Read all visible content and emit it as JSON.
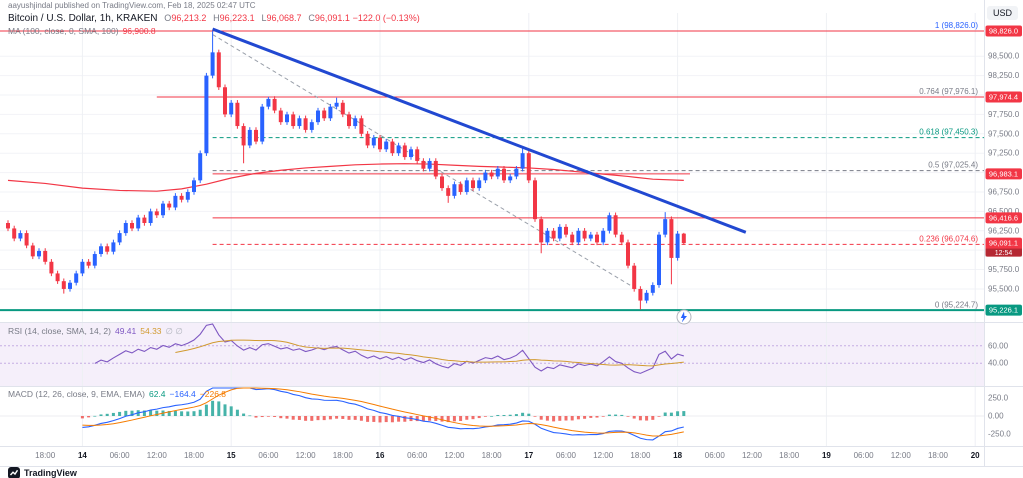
{
  "attribution": "aayushjindal published on TradingView.com, Feb 18, 2025 02:47 UTC",
  "header": {
    "symbol": "Bitcoin / U.S. Dollar, 1h, KRAKEN",
    "ohlc": {
      "o_label": "O",
      "o": "96,213.2",
      "h_label": "H",
      "h": "96,223.1",
      "l_label": "L",
      "l": "96,068.7",
      "c_label": "C",
      "c": "96,091.1",
      "change": "−122.0 (−0.13%)"
    },
    "ma_label": "MA (100, close, 0, SMA, 100)",
    "ma_value": "96,900.8",
    "currency": "USD"
  },
  "rsi_legend": {
    "label": "RSI (14, close, SMA, 14, 2)",
    "value": "49.41",
    "ma_value": "54.33",
    "extra": "∅ ∅"
  },
  "macd_legend": {
    "label": "MACD (12, 26, close, 9, EMA, EMA)",
    "hist": "62.4",
    "macd": "−164.4",
    "signal": "−226.8"
  },
  "footer": {
    "brand": "TradingView"
  },
  "colors": {
    "up": "#2962ff",
    "down": "#f23645",
    "ma": "#f23645",
    "trend_blue": "#2148d1",
    "trend_gray": "#9aa0aa",
    "rsi": "#7e57c2",
    "rsi_ma": "#d19a2f",
    "rsi_band": "#c5aee3",
    "rsi_bg": "#f5effa",
    "macd_line": "#2962ff",
    "signal_line": "#f57c00",
    "hist_up": "#26a69a",
    "hist_down": "#ef5350",
    "badge_red": "#f23645",
    "badge_green": "#089981",
    "axis_text": "#787b86",
    "grid": "#f2f3f7",
    "separator": "#e0e3eb"
  },
  "chart_data": {
    "type": "candlestick",
    "title": "Bitcoin / U.S. Dollar",
    "exchange": "KRAKEN",
    "interval": "1h",
    "start": "2025-02-13 12:00 UTC",
    "end": "2025-02-18 02:00 UTC",
    "price_range": [
      95073,
      99057
    ],
    "last": {
      "open": 96213.2,
      "high": 96223.1,
      "low": 96068.7,
      "close": 96091.1,
      "change": -122.0,
      "change_pct": -0.13
    },
    "candles": {
      "first_open": 96350,
      "wick_pad": 35,
      "closes": [
        96280,
        96150,
        96220,
        96060,
        95920,
        95990,
        95850,
        95700,
        95600,
        95500,
        95580,
        95700,
        95850,
        95800,
        95950,
        96050,
        95980,
        96100,
        96220,
        96350,
        96280,
        96420,
        96350,
        96500,
        96450,
        96600,
        96550,
        96700,
        96650,
        96750,
        96900,
        97250,
        98250,
        98550,
        98100,
        97750,
        97900,
        97600,
        97350,
        97550,
        97400,
        97850,
        97950,
        97800,
        97650,
        97750,
        97600,
        97700,
        97550,
        97650,
        97800,
        97700,
        97850,
        97900,
        97750,
        97600,
        97700,
        97500,
        97350,
        97450,
        97300,
        97400,
        97250,
        97350,
        97200,
        97300,
        97150,
        97050,
        97150,
        96950,
        96800,
        96700,
        96850,
        96750,
        96900,
        96800,
        96900,
        97000,
        96950,
        97050,
        96900,
        96950,
        97050,
        97250,
        96900,
        96400,
        96100,
        96250,
        96150,
        96300,
        96200,
        96100,
        96250,
        96150,
        96200,
        96100,
        96250,
        96450,
        96200,
        96100,
        95800,
        95500,
        95350,
        95450,
        95550,
        96200,
        96400,
        95900,
        96213,
        96091.1
      ],
      "wick_overrides": {
        "9": {
          "low": 95440
        },
        "33": {
          "high": 98826
        },
        "38": {
          "low": 97120
        },
        "42": {
          "high": 97976
        },
        "53": {
          "high": 97965
        },
        "71": {
          "low": 96610
        },
        "83": {
          "high": 97320
        },
        "86": {
          "low": 95960
        },
        "102": {
          "low": 95235
        },
        "106": {
          "high": 96490
        },
        "107": {
          "low": 95560
        },
        "109": {
          "high": 96223.1,
          "low": 96068.7
        }
      }
    },
    "ma100": {
      "period": 100,
      "current": 96900.8,
      "points": [
        [
          0,
          96900
        ],
        [
          6,
          96860
        ],
        [
          12,
          96800
        ],
        [
          18,
          96770
        ],
        [
          24,
          96760
        ],
        [
          28,
          96790
        ],
        [
          32,
          96850
        ],
        [
          36,
          96930
        ],
        [
          40,
          96990
        ],
        [
          44,
          97030
        ],
        [
          48,
          97060
        ],
        [
          52,
          97080
        ],
        [
          56,
          97100
        ],
        [
          60,
          97110
        ],
        [
          64,
          97115
        ],
        [
          68,
          97110
        ],
        [
          72,
          97095
        ],
        [
          76,
          97080
        ],
        [
          80,
          97070
        ],
        [
          84,
          97060
        ],
        [
          88,
          97040
        ],
        [
          92,
          97010
        ],
        [
          96,
          96980
        ],
        [
          100,
          96950
        ],
        [
          104,
          96915
        ],
        [
          109,
          96900
        ]
      ]
    },
    "fib_retracement": {
      "levels": [
        {
          "level": 1,
          "price": 98826.0
        },
        {
          "level": 0.764,
          "price": 97976.1
        },
        {
          "level": 0.618,
          "price": 97450.3
        },
        {
          "level": 0.5,
          "price": 97025.4
        },
        {
          "level": 0.236,
          "price": 96074.6
        },
        {
          "level": 0,
          "price": 95224.7
        }
      ]
    },
    "fib_labels": [
      {
        "text": "1 (98,826.0)",
        "price": 98826.0,
        "color": "#2962ff"
      },
      {
        "text": "0.764 (97,976.1)",
        "price": 97976.1,
        "color": "#787b86"
      },
      {
        "text": "0.618 (97,450.3)",
        "price": 97450.3,
        "color": "#089981"
      },
      {
        "text": "0.5 (97,025.4)",
        "price": 97025.4,
        "color": "#787b86"
      },
      {
        "text": "0.236 (96,074.6)",
        "price": 96074.6,
        "color": "#f23645"
      },
      {
        "text": "0 (95,224.7)",
        "price": 95224.7,
        "color": "#787b86"
      }
    ],
    "lines": [
      {
        "price": 98826.0,
        "from_h": null,
        "to_h": null,
        "style": "solid",
        "color": "#f23645",
        "width": 1
      },
      {
        "price": 97974.4,
        "from_h": 24,
        "to_h": null,
        "style": "solid",
        "color": "#f23645",
        "width": 1
      },
      {
        "price": 97450.3,
        "from_h": 33,
        "to_h": null,
        "style": "dashed",
        "color": "#089981",
        "width": 1
      },
      {
        "price": 97025.4,
        "from_h": 33,
        "to_h": null,
        "style": "dashed",
        "color": "#787b86",
        "width": 1
      },
      {
        "price": 96983.1,
        "from_h": 33,
        "to_h": 110,
        "style": "solid",
        "color": "#f23645",
        "width": 1
      },
      {
        "price": 96416.6,
        "from_h": 33,
        "to_h": null,
        "style": "solid",
        "color": "#f23645",
        "width": 1
      },
      {
        "price": 96074.6,
        "from_h": 33,
        "to_h": null,
        "style": "dashed",
        "color": "#f23645",
        "width": 1
      },
      {
        "price": 95226.1,
        "from_h": null,
        "to_h": null,
        "style": "solid",
        "color": "#089981",
        "width": 2
      }
    ],
    "trendlines": [
      {
        "x1h": 33,
        "p1": 98780,
        "x2h": 103,
        "p2": 95420,
        "color": "#9aa0aa",
        "width": 1,
        "style": "dashed",
        "layer": "below"
      },
      {
        "x1h": 33,
        "p1": 98850,
        "x2h": 119,
        "p2": 96230,
        "color": "#2148d1",
        "width": 3,
        "style": "solid",
        "layer": "above"
      }
    ],
    "price_axis_ticks": [
      {
        "label": "98,500.0",
        "price": 98500
      },
      {
        "label": "98,250.0",
        "price": 98250
      },
      {
        "label": "98,000.0",
        "price": 98000
      },
      {
        "label": "97,750.0",
        "price": 97750
      },
      {
        "label": "97,500.0",
        "price": 97500
      },
      {
        "label": "97,250.0",
        "price": 97250
      },
      {
        "label": "97,000.0",
        "price": 97000
      },
      {
        "label": "96,750.0",
        "price": 96750
      },
      {
        "label": "96,500.0",
        "price": 96500
      },
      {
        "label": "96,250.0",
        "price": 96250
      },
      {
        "label": "96,000.0",
        "price": 96000
      },
      {
        "label": "95,750.0",
        "price": 95750
      },
      {
        "label": "95,500.0",
        "price": 95500
      }
    ],
    "price_badges": [
      {
        "label": "98,826.0",
        "price": 98826.0,
        "bg": "#f23645"
      },
      {
        "label": "97,974.4",
        "price": 97974.4,
        "bg": "#f23645"
      },
      {
        "label": "96,983.1",
        "price": 96983.1,
        "bg": "#f23645"
      },
      {
        "label": "96,416.6",
        "price": 96416.6,
        "bg": "#f23645"
      },
      {
        "label": "96,091.1",
        "price": 96091.1,
        "bg": "#f23645",
        "countdown": "12:54"
      },
      {
        "label": "95,226.1",
        "price": 95226.1,
        "bg": "#089981"
      }
    ],
    "time_axis": [
      {
        "text": "18:00",
        "h": 6
      },
      {
        "text": "14",
        "h": 12,
        "bold": true
      },
      {
        "text": "06:00",
        "h": 18
      },
      {
        "text": "12:00",
        "h": 24
      },
      {
        "text": "18:00",
        "h": 30
      },
      {
        "text": "15",
        "h": 36,
        "bold": true
      },
      {
        "text": "06:00",
        "h": 42
      },
      {
        "text": "12:00",
        "h": 48
      },
      {
        "text": "18:00",
        "h": 54
      },
      {
        "text": "16",
        "h": 60,
        "bold": true
      },
      {
        "text": "06:00",
        "h": 66
      },
      {
        "text": "12:00",
        "h": 72
      },
      {
        "text": "18:00",
        "h": 78
      },
      {
        "text": "17",
        "h": 84,
        "bold": true
      },
      {
        "text": "06:00",
        "h": 90
      },
      {
        "text": "12:00",
        "h": 96
      },
      {
        "text": "18:00",
        "h": 102
      },
      {
        "text": "18",
        "h": 108,
        "bold": true
      },
      {
        "text": "06:00",
        "h": 114
      },
      {
        "text": "12:00",
        "h": 120
      },
      {
        "text": "18:00",
        "h": 126
      },
      {
        "text": "19",
        "h": 132,
        "bold": true
      },
      {
        "text": "06:00",
        "h": 138
      },
      {
        "text": "12:00",
        "h": 144
      },
      {
        "text": "18:00",
        "h": 150
      },
      {
        "text": "20",
        "h": 156,
        "bold": true
      }
    ],
    "rsi": {
      "period": 14,
      "current": 49.41,
      "ma_current": 54.33,
      "ticks": [
        {
          "label": "60.00",
          "value": 60
        },
        {
          "label": "40.00",
          "value": 40
        }
      ]
    },
    "macd": {
      "fast": 12,
      "slow": 26,
      "signal_period": 9,
      "current_hist": 62.4,
      "current_macd": -164.4,
      "current_signal": -226.8,
      "ticks": [
        {
          "label": "250.0",
          "value": 250
        },
        {
          "label": "0.00",
          "value": 0
        },
        {
          "label": "-250.0",
          "value": -250
        }
      ]
    }
  }
}
